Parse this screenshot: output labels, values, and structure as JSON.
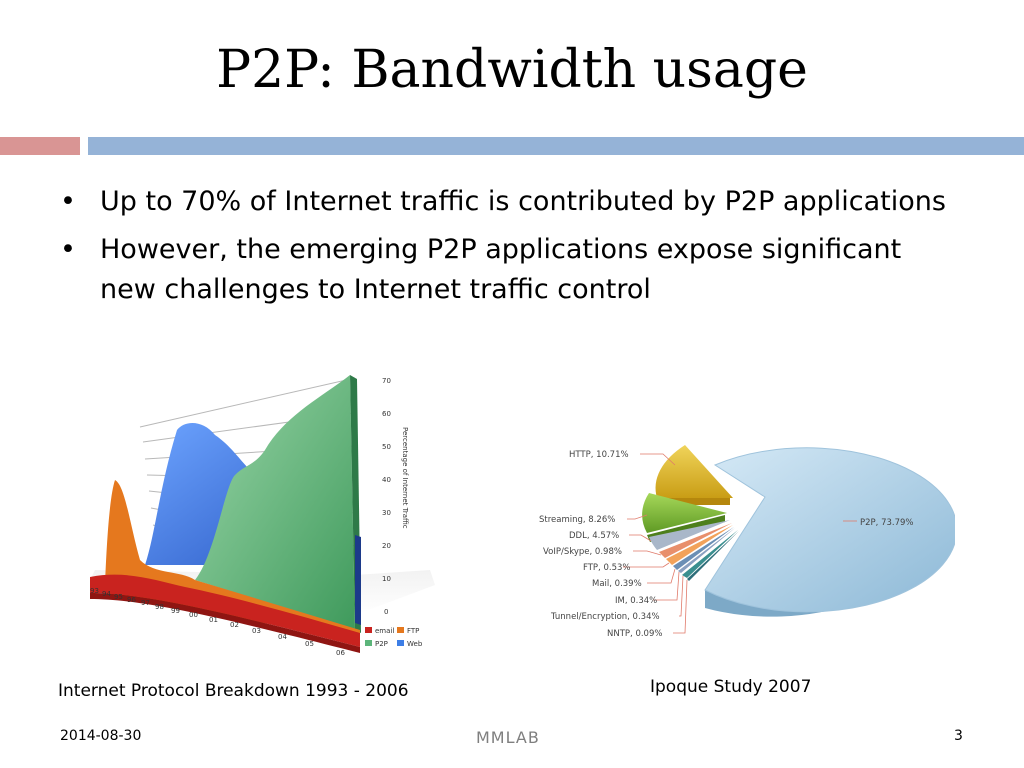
{
  "slide": {
    "title": "P2P: Bandwidth usage",
    "bullets": [
      "Up to 70% of Internet traffic is contributed by P2P applications",
      "However, the emerging P2P applications expose significant new challenges to Internet traffic control"
    ],
    "left_caption": "Internet Protocol Breakdown 1993 - 2006",
    "right_caption": "Ipoque Study 2007",
    "footer": {
      "date": "2014-08-30",
      "org": "MMLAB",
      "page": "3"
    },
    "colors": {
      "accent_red": "#d99594",
      "accent_blue": "#95b3d7"
    }
  },
  "chart_data": [
    {
      "type": "area",
      "x": [
        "93",
        "94",
        "95",
        "96",
        "97",
        "98",
        "99",
        "00",
        "01",
        "02",
        "03",
        "04",
        "05",
        "06"
      ],
      "ylabel": "Percentage of Internet Traffic",
      "yticks": [
        "0",
        "10",
        "20",
        "30",
        "40",
        "50",
        "60",
        "70"
      ],
      "ylim": [
        0,
        70
      ],
      "legend": [
        "email",
        "FTP",
        "P2P",
        "Web"
      ],
      "series": [
        {
          "name": "email",
          "color": "#c9231f"
        },
        {
          "name": "FTP",
          "color": "#e5781e"
        },
        {
          "name": "P2P",
          "color": "#5cb57a"
        },
        {
          "name": "Web",
          "color": "#3d7ee6"
        }
      ]
    },
    {
      "type": "pie",
      "slices": [
        {
          "label": "P2P, 73.79%",
          "value": 73.79,
          "color": "#a9cde6"
        },
        {
          "label": "HTTP, 10.71%",
          "value": 10.71,
          "color": "#e2c13a"
        },
        {
          "label": "Streaming, 8.26%",
          "value": 8.26,
          "color": "#8dc63f"
        },
        {
          "label": "DDL, 4.57%",
          "value": 4.57,
          "color": "#a9b7c9"
        },
        {
          "label": "VoIP/Skype, 0.98%",
          "value": 0.98,
          "color": "#e88f6b"
        },
        {
          "label": "FTP, 0.53%",
          "value": 0.53,
          "color": "#f2a25a"
        },
        {
          "label": "Mail, 0.39%",
          "value": 0.39,
          "color": "#6b8fb5"
        },
        {
          "label": "IM, 0.34%",
          "value": 0.34,
          "color": "#8aa0c0"
        },
        {
          "label": "Tunnel/Encryption, 0.34%",
          "value": 0.34,
          "color": "#3a8f8f"
        },
        {
          "label": "NNTP, 0.09%",
          "value": 0.09,
          "color": "#2e6e7a"
        }
      ]
    }
  ]
}
